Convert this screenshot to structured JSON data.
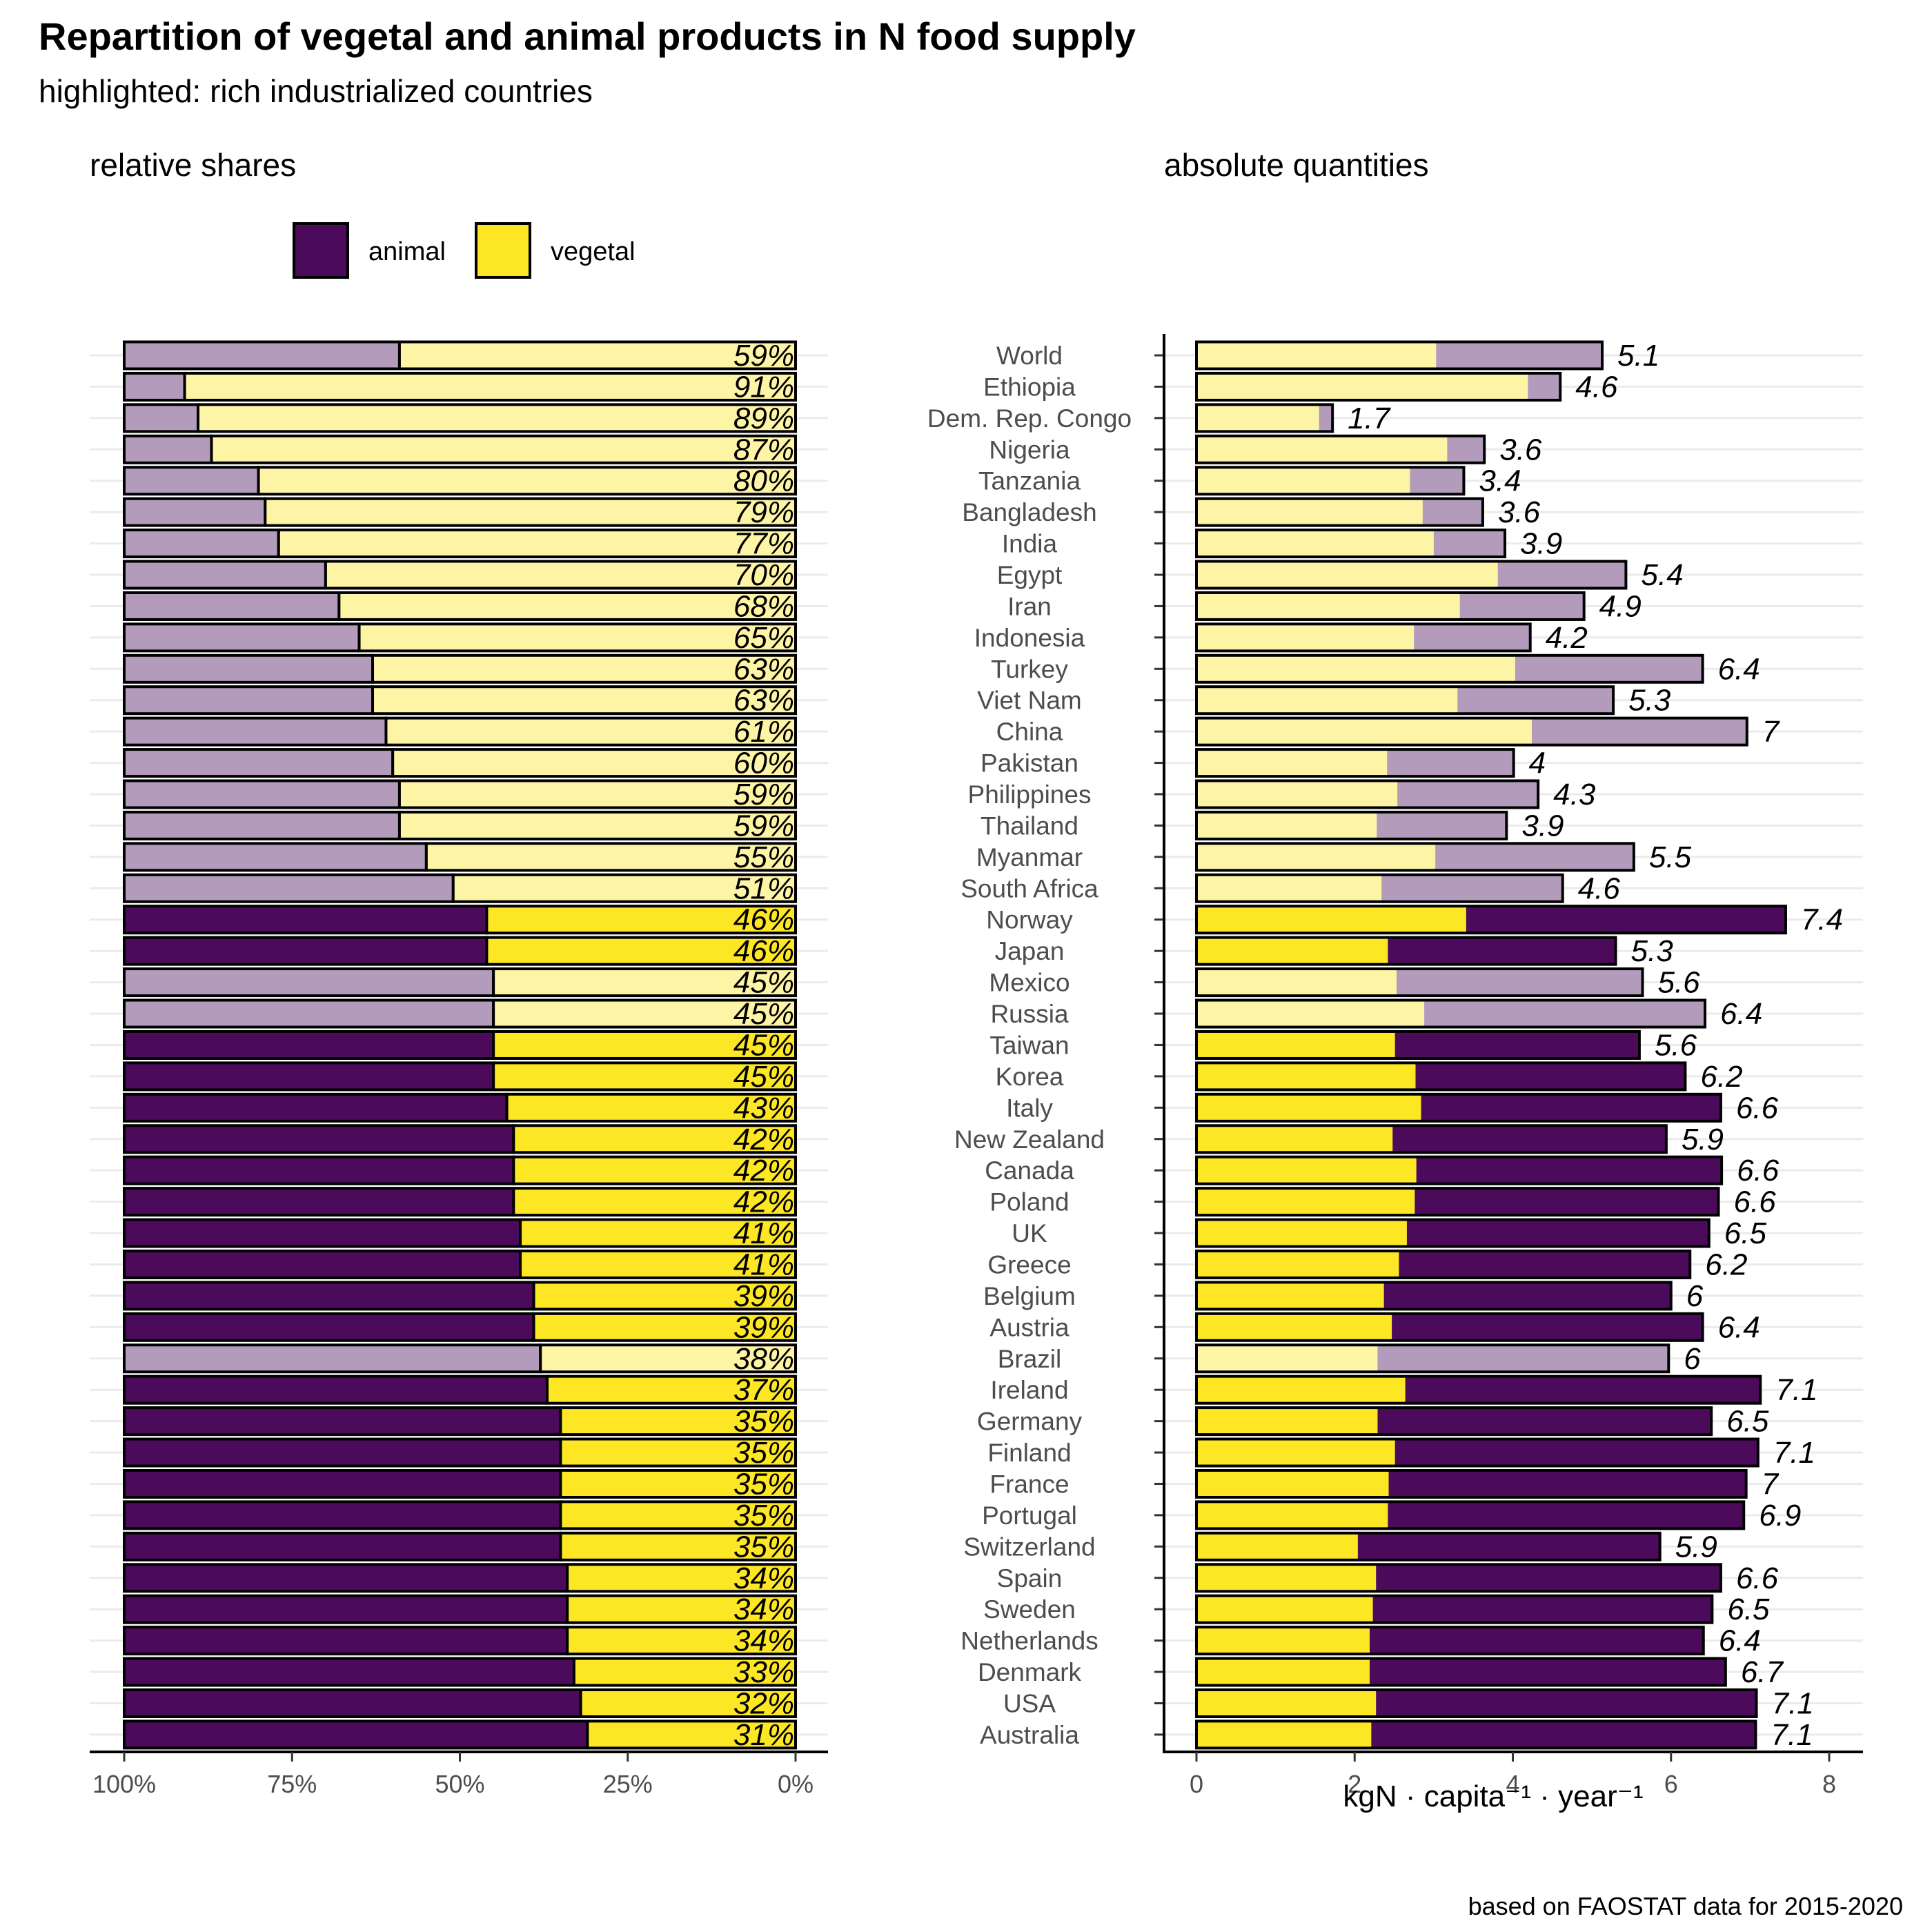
{
  "chart_data": {
    "type": "bar",
    "title": "Repartition of vegetal and animal products in N food supply",
    "subtitle": "highlighted: rich industrialized countries",
    "caption": "based on FAOSTAT data for 2015-2020",
    "legend": {
      "position": "top-left",
      "entries": [
        "animal",
        "vegetal"
      ]
    },
    "colors": {
      "animal": "#4b0a5a",
      "animal_light": "#b29bbb",
      "vegetal": "#fde725",
      "vegetal_light": "#fef4a6",
      "outline": "#000000",
      "grid": "#ebebeb"
    },
    "categories": [
      "World",
      "Ethiopia",
      "Dem. Rep. Congo",
      "Nigeria",
      "Tanzania",
      "Bangladesh",
      "India",
      "Egypt",
      "Iran",
      "Indonesia",
      "Turkey",
      "Viet Nam",
      "China",
      "Pakistan",
      "Philippines",
      "Thailand",
      "Myanmar",
      "South Africa",
      "Norway",
      "Japan",
      "Mexico",
      "Russia",
      "Taiwan",
      "Korea",
      "Italy",
      "New Zealand",
      "Canada",
      "Poland",
      "UK",
      "Greece",
      "Belgium",
      "Austria",
      "Brazil",
      "Ireland",
      "Germany",
      "Finland",
      "France",
      "Portugal",
      "Switzerland",
      "Spain",
      "Sweden",
      "Netherlands",
      "Denmark",
      "USA",
      "Australia"
    ],
    "highlighted": [
      false,
      false,
      false,
      false,
      false,
      false,
      false,
      false,
      false,
      false,
      false,
      false,
      false,
      false,
      false,
      false,
      false,
      false,
      true,
      true,
      false,
      false,
      true,
      true,
      true,
      true,
      true,
      true,
      true,
      true,
      true,
      true,
      false,
      true,
      true,
      true,
      true,
      true,
      true,
      true,
      true,
      true,
      true,
      true,
      true
    ],
    "panels": [
      {
        "label": "relative shares",
        "xlim": [
          1,
          0
        ],
        "x_ticks": [
          "100%",
          "75%",
          "50%",
          "25%",
          "0%"
        ],
        "series": [
          {
            "name": "vegetal",
            "values": [
              59,
              91,
              89,
              87,
              80,
              79,
              77,
              70,
              68,
              65,
              63,
              63,
              61,
              60,
              59,
              59,
              55,
              51,
              46,
              46,
              45,
              45,
              45,
              45,
              43,
              42,
              42,
              42,
              41,
              41,
              39,
              39,
              38,
              37,
              35,
              35,
              35,
              35,
              35,
              34,
              34,
              34,
              33,
              32,
              31
            ]
          }
        ],
        "value_labels": [
          "59%",
          "91%",
          "89%",
          "87%",
          "80%",
          "79%",
          "77%",
          "70%",
          "68%",
          "65%",
          "63%",
          "63%",
          "61%",
          "60%",
          "59%",
          "59%",
          "55%",
          "51%",
          "46%",
          "46%",
          "45%",
          "45%",
          "45%",
          "45%",
          "43%",
          "42%",
          "42%",
          "42%",
          "41%",
          "41%",
          "39%",
          "39%",
          "38%",
          "37%",
          "35%",
          "35%",
          "35%",
          "35%",
          "35%",
          "34%",
          "34%",
          "34%",
          "33%",
          "32%",
          "31%"
        ]
      },
      {
        "label": "absolute quantities",
        "xlabel": "kgN · capita⁻¹ · year⁻¹",
        "xlim": [
          0,
          8
        ],
        "x_ticks": [
          "0",
          "2",
          "4",
          "6",
          "8"
        ],
        "series": [
          {
            "name": "vegetal",
            "values": [
              3.03,
              4.19,
              1.55,
              3.17,
              2.7,
              2.86,
              3.0,
              3.81,
              3.33,
              2.75,
              4.03,
              3.3,
              4.24,
              2.41,
              2.54,
              2.28,
              3.02,
              2.34,
              3.41,
              2.42,
              2.53,
              2.88,
              2.51,
              2.77,
              2.84,
              2.48,
              2.78,
              2.76,
              2.66,
              2.56,
              2.37,
              2.47,
              2.29,
              2.64,
              2.29,
              2.51,
              2.43,
              2.42,
              2.04,
              2.27,
              2.23,
              2.19,
              2.19,
              2.27,
              2.21
            ]
          },
          {
            "name": "animal",
            "values": [
              2.1,
              0.41,
              0.17,
              0.47,
              0.68,
              0.76,
              0.9,
              1.62,
              1.57,
              1.47,
              2.37,
              1.97,
              2.72,
              1.6,
              1.78,
              1.64,
              2.51,
              2.29,
              4.04,
              2.88,
              3.11,
              3.55,
              3.09,
              3.41,
              3.79,
              3.46,
              3.86,
              3.84,
              3.82,
              3.68,
              3.63,
              3.93,
              3.68,
              4.49,
              4.22,
              4.59,
              4.52,
              4.5,
              3.82,
              4.36,
              4.29,
              4.22,
              4.5,
              4.81,
              4.86
            ]
          }
        ],
        "totals": [
          5.1,
          4.6,
          1.7,
          3.6,
          3.4,
          3.6,
          3.9,
          5.4,
          4.9,
          4.2,
          6.4,
          5.3,
          7,
          4,
          4.3,
          3.9,
          5.5,
          4.6,
          7.4,
          5.3,
          5.6,
          6.4,
          5.6,
          6.2,
          6.6,
          5.9,
          6.6,
          6.6,
          6.5,
          6.2,
          6,
          6.4,
          6,
          7.1,
          6.5,
          7.1,
          7,
          6.9,
          5.9,
          6.6,
          6.5,
          6.4,
          6.7,
          7.1,
          7.1
        ],
        "value_labels": [
          "5.1",
          "4.6",
          "1.7",
          "3.6",
          "3.4",
          "3.6",
          "3.9",
          "5.4",
          "4.9",
          "4.2",
          "6.4",
          "5.3",
          "7",
          "4",
          "4.3",
          "3.9",
          "5.5",
          "4.6",
          "7.4",
          "5.3",
          "5.6",
          "6.4",
          "5.6",
          "6.2",
          "6.6",
          "5.9",
          "6.6",
          "6.6",
          "6.5",
          "6.2",
          "6",
          "6.4",
          "6",
          "7.1",
          "6.5",
          "7.1",
          "7",
          "6.9",
          "5.9",
          "6.6",
          "6.5",
          "6.4",
          "6.7",
          "7.1",
          "7.1"
        ]
      }
    ]
  }
}
